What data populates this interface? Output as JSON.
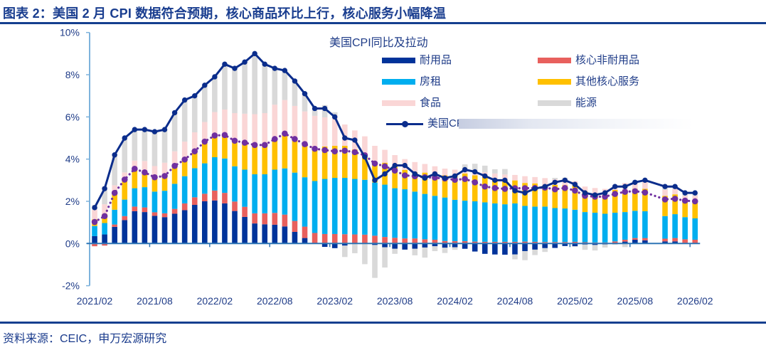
{
  "header": {
    "title": "图表 2：美国 2 月 CPI 数据符合预期，核心商品环比上行，核心服务小幅降温"
  },
  "footer": {
    "source": "资料来源：CEIC，申万宏源研究"
  },
  "chart_data": {
    "type": "bar",
    "stacked": true,
    "title": "美国CPI同比及拉动",
    "xlabel": "",
    "ylabel": "",
    "ylim": [
      -2,
      10
    ],
    "y_ticks": [
      10,
      8,
      6,
      4,
      2,
      0,
      -2
    ],
    "y_tick_labels": [
      "10%",
      "8%",
      "6%",
      "4%",
      "2%",
      "0%",
      "-2%"
    ],
    "x_tick_labels": [
      "2021/02",
      "2021/08",
      "2022/02",
      "2022/08",
      "2023/02",
      "2023/08",
      "2024/02",
      "2024/08",
      "2025/02",
      "2025/08",
      "2026/02"
    ],
    "grid": false,
    "legend_position": "top-right",
    "categories": [
      "2021/02",
      "2021/03",
      "2021/04",
      "2021/05",
      "2021/06",
      "2021/07",
      "2021/08",
      "2021/09",
      "2021/10",
      "2021/11",
      "2021/12",
      "2022/01",
      "2022/02",
      "2022/03",
      "2022/04",
      "2022/05",
      "2022/06",
      "2022/07",
      "2022/08",
      "2022/09",
      "2022/10",
      "2022/11",
      "2022/12",
      "2023/01",
      "2023/02",
      "2023/03",
      "2023/04",
      "2023/05",
      "2023/06",
      "2023/07",
      "2023/08",
      "2023/09",
      "2023/10",
      "2023/11",
      "2023/12",
      "2024/01",
      "2024/02",
      "2024/03",
      "2024/04",
      "2024/05",
      "2024/06",
      "2024/07",
      "2024/08",
      "2024/09",
      "2024/10",
      "2024/11",
      "2024/12",
      "2025/01",
      "2025/02",
      "2025/03",
      "2025/04",
      "2025/05",
      "2025/06",
      "2025/07",
      "2025/08",
      "2025/09",
      "2025/10",
      "2025/11",
      "2025/12",
      "2026/01",
      "2026/02"
    ],
    "bar_series": [
      {
        "name": "耐用品",
        "color": "#00339a",
        "values": [
          0.35,
          0.43,
          0.79,
          1.11,
          1.53,
          1.49,
          1.31,
          1.25,
          1.41,
          1.58,
          1.83,
          2.0,
          2.04,
          1.9,
          1.54,
          1.26,
          0.95,
          0.91,
          0.89,
          0.81,
          0.55,
          0.26,
          0.0,
          -0.16,
          -0.22,
          -0.1,
          0.0,
          0.0,
          -0.07,
          -0.18,
          -0.25,
          -0.29,
          -0.25,
          -0.19,
          -0.13,
          -0.2,
          -0.18,
          -0.25,
          -0.38,
          -0.49,
          -0.52,
          -0.53,
          -0.52,
          -0.36,
          -0.29,
          -0.22,
          -0.21,
          -0.12,
          -0.13,
          -0.05,
          -0.07,
          -0.04,
          0.02,
          0.09,
          0.18,
          0.15,
          null,
          0.1,
          0.1,
          0.03,
          0.0
        ]
      },
      {
        "name": "核心非耐用品",
        "color": "#e8605d",
        "values": [
          -0.13,
          -0.1,
          0.11,
          0.19,
          0.22,
          0.22,
          0.17,
          0.18,
          0.23,
          0.32,
          0.36,
          0.36,
          0.47,
          0.5,
          0.45,
          0.48,
          0.48,
          0.52,
          0.56,
          0.56,
          0.52,
          0.54,
          0.5,
          0.45,
          0.45,
          0.44,
          0.43,
          0.42,
          0.37,
          0.31,
          0.27,
          0.24,
          0.24,
          0.2,
          0.18,
          0.12,
          0.11,
          0.11,
          0.09,
          0.08,
          0.08,
          0.08,
          0.08,
          0.09,
          0.08,
          0.07,
          0.07,
          0.07,
          0.08,
          0.06,
          0.05,
          0.05,
          0.08,
          0.09,
          0.08,
          0.11,
          null,
          0.13,
          0.16,
          0.17,
          0.18
        ]
      },
      {
        "name": "房租",
        "color": "#00aeef",
        "values": [
          0.48,
          0.54,
          0.7,
          0.78,
          0.87,
          0.96,
          0.98,
          1.07,
          1.19,
          1.29,
          1.38,
          1.44,
          1.58,
          1.63,
          1.67,
          1.76,
          1.85,
          1.85,
          2.05,
          2.19,
          2.29,
          2.34,
          2.46,
          2.61,
          2.66,
          2.67,
          2.63,
          2.6,
          2.52,
          2.48,
          2.35,
          2.33,
          2.22,
          2.15,
          2.08,
          2.06,
          1.96,
          1.92,
          1.91,
          1.87,
          1.82,
          1.78,
          1.82,
          1.69,
          1.67,
          1.68,
          1.61,
          1.59,
          1.52,
          1.43,
          1.41,
          1.36,
          1.36,
          1.31,
          1.29,
          1.27,
          null,
          1.07,
          1.13,
          1.05,
          1.01
        ]
      },
      {
        "name": "其他核心服务",
        "color": "#ffc000",
        "values": [
          0.32,
          0.43,
          0.8,
          0.95,
          0.92,
          0.7,
          0.68,
          0.7,
          0.85,
          0.79,
          0.8,
          1.03,
          1.03,
          1.11,
          1.21,
          1.28,
          1.39,
          1.39,
          1.45,
          1.65,
          1.59,
          1.58,
          1.55,
          1.54,
          1.52,
          1.52,
          1.4,
          1.24,
          0.9,
          1.04,
          1.06,
          0.92,
          0.92,
          1.01,
          1.04,
          1.05,
          1.16,
          1.29,
          1.23,
          1.2,
          1.14,
          1.13,
          1.09,
          1.09,
          1.1,
          1.01,
          1.1,
          1.1,
          1.16,
          0.99,
          0.91,
          0.9,
          1.08,
          1.05,
          1.04,
          1.06,
          null,
          0.96,
          0.94,
          0.78,
          0.81
        ]
      },
      {
        "name": "食品",
        "color": "#fad6d6",
        "values": [
          0.45,
          0.46,
          0.36,
          0.34,
          0.39,
          0.54,
          0.53,
          0.63,
          0.69,
          0.85,
          0.9,
          0.93,
          1.11,
          1.21,
          1.31,
          1.37,
          1.46,
          1.51,
          1.63,
          1.59,
          1.57,
          1.54,
          1.54,
          1.38,
          1.46,
          1.01,
          0.9,
          0.82,
          0.84,
          0.61,
          0.51,
          0.51,
          0.48,
          0.41,
          0.36,
          0.32,
          0.27,
          0.23,
          0.2,
          0.23,
          0.28,
          0.28,
          0.26,
          0.32,
          0.3,
          0.34,
          0.26,
          0.28,
          0.2,
          0.22,
          0.26,
          0.28,
          0.22,
          0.33,
          0.34,
          0.43,
          null,
          0.28,
          0.26,
          0.23,
          0.26
        ]
      },
      {
        "name": "能源",
        "color": "#d9d9d9",
        "values": [
          0.23,
          0.84,
          1.44,
          1.63,
          1.47,
          1.49,
          1.63,
          1.57,
          1.83,
          1.97,
          1.73,
          1.74,
          1.67,
          2.15,
          2.12,
          2.45,
          2.87,
          2.32,
          1.72,
          1.4,
          1.18,
          0.84,
          0.35,
          0.58,
          0.13,
          -0.54,
          -0.46,
          -0.98,
          -1.56,
          -0.96,
          -0.24,
          -0.01,
          -0.31,
          -0.48,
          -0.23,
          -0.25,
          -0.12,
          0.2,
          0.35,
          0.31,
          0.2,
          0.26,
          -0.23,
          -0.43,
          -0.26,
          -0.18,
          0.07,
          0.08,
          -0.03,
          -0.25,
          -0.26,
          -0.15,
          -0.06,
          -0.17,
          -0.03,
          -0.02,
          null,
          0.16,
          0.11,
          0.14,
          0.14
        ]
      }
    ],
    "line_series": [
      {
        "name": "美国CPI",
        "color": "#0b2d8c",
        "style": "solid-with-markers",
        "values": [
          1.7,
          2.6,
          4.2,
          5.0,
          5.4,
          5.4,
          5.3,
          5.4,
          6.2,
          6.8,
          7.0,
          7.5,
          7.9,
          8.5,
          8.3,
          8.6,
          9.0,
          8.5,
          8.3,
          8.2,
          7.7,
          7.1,
          6.4,
          6.4,
          6.0,
          5.0,
          4.9,
          4.1,
          3.0,
          3.3,
          3.7,
          3.7,
          3.3,
          3.1,
          3.3,
          3.1,
          3.2,
          3.5,
          3.4,
          3.2,
          3.0,
          3.0,
          2.5,
          2.4,
          2.6,
          2.7,
          2.9,
          3.0,
          2.8,
          2.4,
          2.3,
          2.4,
          2.7,
          2.7,
          2.9,
          3.0,
          null,
          2.7,
          2.7,
          2.4,
          2.4
        ]
      },
      {
        "name": "",
        "color": "#7030a0",
        "style": "dotted-with-markers",
        "values": [
          1.02,
          1.3,
          2.4,
          3.03,
          3.54,
          3.37,
          3.14,
          3.2,
          3.68,
          3.98,
          4.37,
          4.83,
          5.12,
          5.14,
          4.87,
          4.78,
          4.67,
          4.67,
          4.95,
          5.21,
          4.95,
          4.71,
          4.49,
          4.43,
          4.37,
          4.4,
          4.33,
          4.18,
          3.79,
          3.66,
          3.46,
          3.23,
          3.19,
          3.14,
          3.12,
          3.08,
          3.02,
          3.06,
          2.9,
          2.7,
          2.63,
          2.59,
          2.62,
          2.62,
          2.63,
          2.65,
          2.57,
          2.63,
          2.51,
          2.26,
          2.22,
          2.22,
          2.35,
          2.45,
          2.48,
          2.42,
          null,
          2.09,
          2.12,
          2.03,
          2.0
        ]
      }
    ],
    "axis_colors": {
      "y_axis": "#7eb3dc",
      "zero_line": "#2f75b5",
      "tick_text": "#1f3c88"
    }
  }
}
